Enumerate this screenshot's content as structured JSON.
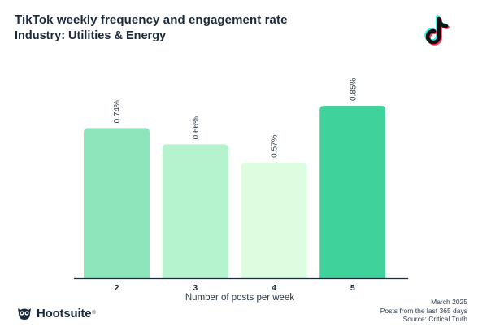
{
  "header": {
    "title": "TikTok weekly frequency and engagement rate",
    "subtitle": "Industry: Utilities & Energy"
  },
  "brand": {
    "name": "Hootsuite",
    "trademark": "®"
  },
  "footer": {
    "date": "March 2025",
    "note": "Posts from the last 365 days",
    "source": "Source: Critical Truth"
  },
  "chart_data": {
    "type": "bar",
    "title": "TikTok weekly frequency and engagement rate",
    "subtitle": "Industry: Utilities & Energy",
    "xlabel": "Number of posts per week",
    "ylabel": "",
    "ylim": [
      0,
      0.85
    ],
    "grid": false,
    "categories": [
      "2",
      "3",
      "4",
      "5"
    ],
    "values": [
      0.74,
      0.66,
      0.57,
      0.85
    ],
    "value_labels": [
      "0.74%",
      "0.66%",
      "0.57%",
      "0.85%"
    ],
    "colors": [
      "#8de6bb",
      "#b4f3cd",
      "#dcfddf",
      "#3fd29a"
    ],
    "baseline_color": "#1b2a3a"
  }
}
